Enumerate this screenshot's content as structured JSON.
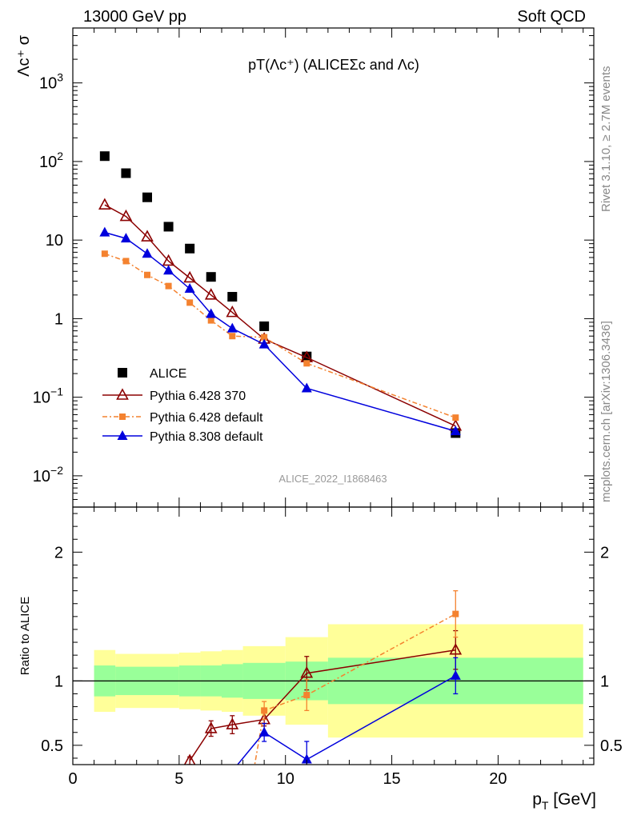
{
  "header": {
    "left": "13000 GeV pp",
    "right": "Soft QCD"
  },
  "side_labels": {
    "rivet": "Rivet 3.1.10, ≥ 2.7M events",
    "mcplots": "mcplots.cern.ch [arXiv:1306.3436]"
  },
  "colors": {
    "alice": "#000000",
    "pythia6_370": "#8b0000",
    "pythia6_default": "#f4822f",
    "pythia8_default": "#0000dd",
    "band_inner": "#99ff99",
    "band_outer": "#ffff99"
  },
  "chart_data": [
    {
      "type": "scatter",
      "title": "pT(Λc⁺) (ALICEΣc and Λc)",
      "watermark": "ALICE_2022_I1868463",
      "ylabel": "Λc⁺ σ",
      "yscale": "log",
      "ylim": [
        0.004,
        5000
      ],
      "xlim": [
        0,
        24.5
      ],
      "yticks": [
        {
          "value": 0.01,
          "base": "10",
          "exp": "−2"
        },
        {
          "value": 0.1,
          "base": "10",
          "exp": "−1"
        },
        {
          "value": 1,
          "base": "1",
          "exp": ""
        },
        {
          "value": 10,
          "base": "10",
          "exp": ""
        },
        {
          "value": 100,
          "base": "10",
          "exp": "2"
        },
        {
          "value": 1000,
          "base": "10",
          "exp": "3"
        }
      ],
      "legend_position": "lower-left",
      "series": [
        {
          "name": "ALICE",
          "marker": "square",
          "color": "#000000",
          "line": false,
          "x": [
            1.5,
            2.5,
            3.5,
            4.5,
            5.5,
            6.5,
            7.5,
            9,
            11,
            18
          ],
          "y": [
            117,
            71,
            35,
            14.8,
            7.8,
            3.4,
            1.9,
            0.8,
            0.33,
            0.035
          ]
        },
        {
          "name": "Pythia 6.428 370",
          "marker": "triangle-open",
          "color": "#8b0000",
          "line": true,
          "dash": "",
          "x": [
            1.5,
            2.5,
            3.5,
            4.5,
            5.5,
            6.5,
            7.5,
            9,
            11,
            18
          ],
          "y": [
            28,
            20,
            11,
            5.4,
            3.3,
            2.0,
            1.2,
            0.55,
            0.32,
            0.043
          ]
        },
        {
          "name": "Pythia 6.428 default",
          "marker": "square-small",
          "color": "#f4822f",
          "line": true,
          "dash": "6,3,2,3",
          "x": [
            1.5,
            2.5,
            3.5,
            4.5,
            5.5,
            6.5,
            7.5,
            9,
            11,
            18
          ],
          "y": [
            6.7,
            5.4,
            3.6,
            2.6,
            1.6,
            0.95,
            0.6,
            0.58,
            0.27,
            0.055
          ]
        },
        {
          "name": "Pythia 8.308 default",
          "marker": "triangle",
          "color": "#0000dd",
          "line": true,
          "dash": "",
          "x": [
            1.5,
            2.5,
            3.5,
            4.5,
            5.5,
            6.5,
            7.5,
            9,
            11,
            18
          ],
          "y": [
            12.5,
            10.5,
            6.7,
            4.1,
            2.4,
            1.15,
            0.75,
            0.47,
            0.13,
            0.037
          ]
        }
      ]
    },
    {
      "type": "scatter",
      "ylabel": "Ratio to ALICE",
      "xlabel": "p_T [GeV]",
      "xlim": [
        0,
        24.5
      ],
      "ylim": [
        0.35,
        2.35
      ],
      "xticks": [
        0,
        5,
        10,
        15,
        20
      ],
      "yticks": [
        0.5,
        1,
        2
      ],
      "bands": [
        {
          "x": [
            1,
            2
          ],
          "inner": [
            0.88,
            1.12
          ],
          "outer": [
            0.76,
            1.24
          ]
        },
        {
          "x": [
            2,
            5
          ],
          "inner": [
            0.89,
            1.11
          ],
          "outer": [
            0.79,
            1.21
          ]
        },
        {
          "x": [
            5,
            6
          ],
          "inner": [
            0.88,
            1.12
          ],
          "outer": [
            0.78,
            1.22
          ]
        },
        {
          "x": [
            6,
            7
          ],
          "inner": [
            0.88,
            1.12
          ],
          "outer": [
            0.77,
            1.23
          ]
        },
        {
          "x": [
            7,
            8
          ],
          "inner": [
            0.87,
            1.13
          ],
          "outer": [
            0.76,
            1.24
          ]
        },
        {
          "x": [
            8,
            10
          ],
          "inner": [
            0.86,
            1.14
          ],
          "outer": [
            0.73,
            1.27
          ]
        },
        {
          "x": [
            10,
            12
          ],
          "inner": [
            0.85,
            1.15
          ],
          "outer": [
            0.66,
            1.34
          ]
        },
        {
          "x": [
            12,
            24
          ],
          "inner": [
            0.82,
            1.18
          ],
          "outer": [
            0.56,
            1.44
          ]
        }
      ],
      "series": [
        {
          "name": "Pythia 6.428 370",
          "color": "#8b0000",
          "marker": "triangle-open",
          "dash": "",
          "x": [
            5.5,
            6.5,
            7.5,
            9,
            11,
            18
          ],
          "y": [
            0.38,
            0.63,
            0.66,
            0.7,
            1.06,
            1.24
          ],
          "err": [
            0.03,
            0.06,
            0.07,
            0.05,
            0.13,
            0.15
          ]
        },
        {
          "name": "Pythia 6.428 default",
          "color": "#f4822f",
          "marker": "square-small",
          "dash": "6,3,2,3",
          "x": [
            8.5,
            9,
            11,
            18
          ],
          "y": [
            0.3,
            0.77,
            0.89,
            1.52
          ],
          "err": [
            0,
            0.07,
            0.12,
            0.18
          ]
        },
        {
          "name": "Pythia 8.308 default",
          "color": "#0000dd",
          "marker": "triangle",
          "dash": "",
          "x": [
            7.5,
            9,
            11,
            18
          ],
          "y": [
            0.3,
            0.6,
            0.39,
            1.04
          ],
          "err": [
            0,
            0.07,
            0.14,
            0.14
          ]
        }
      ]
    }
  ]
}
